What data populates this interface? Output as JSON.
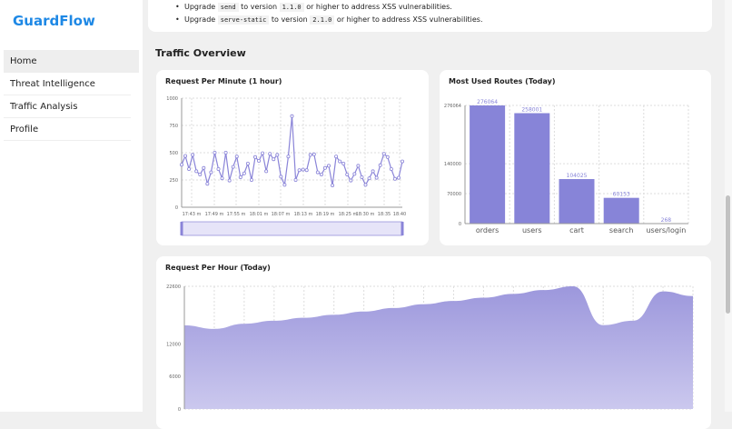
{
  "app": {
    "name": "GuardFlow"
  },
  "sidebar": {
    "items": [
      {
        "label": "Home",
        "active": true
      },
      {
        "label": "Threat Intelligence"
      },
      {
        "label": "Traffic Analysis"
      },
      {
        "label": "Profile"
      }
    ]
  },
  "recommendations": [
    {
      "pre": "Upgrade",
      "pkg": "send",
      "mid": "to version",
      "ver": "1.1.0",
      "post": "or higher to address XSS vulnerabilities."
    },
    {
      "pre": "Upgrade",
      "pkg": "serve-static",
      "mid": "to version",
      "ver": "2.1.0",
      "post": "or higher to address XSS vulnerabilities."
    }
  ],
  "section_title": "Traffic Overview",
  "colors": {
    "accent": "#8a84d8",
    "brand": "#1e88e5"
  },
  "chart_data": [
    {
      "type": "line",
      "title": "Request Per Minute (1 hour)",
      "ylim": [
        0,
        1000
      ],
      "yticks": [
        0,
        250,
        500,
        750,
        1000
      ],
      "xtick_labels": [
        "17:43 m",
        "17:49 m",
        "17:55 m",
        "18:01 m",
        "18:07 m",
        "18:13 m",
        "18:19 m",
        "18:25 m",
        "18:30 m",
        "18:35",
        "18:40"
      ],
      "values": [
        390,
        470,
        350,
        480,
        330,
        300,
        360,
        215,
        320,
        500,
        350,
        265,
        500,
        245,
        370,
        465,
        275,
        310,
        400,
        250,
        460,
        425,
        495,
        330,
        490,
        440,
        480,
        280,
        205,
        465,
        835,
        250,
        340,
        345,
        340,
        480,
        485,
        320,
        300,
        360,
        380,
        200,
        465,
        420,
        400,
        300,
        245,
        305,
        380,
        275,
        205,
        265,
        330,
        270,
        385,
        490,
        460,
        350,
        260,
        270,
        420
      ],
      "grid": true,
      "zoom_slider": {
        "start": 0,
        "end": 100
      }
    },
    {
      "type": "bar",
      "title": "Most Used Routes (Today)",
      "categories": [
        "orders",
        "users",
        "cart",
        "search",
        "users/login"
      ],
      "values": [
        276064,
        258001,
        104025,
        60153,
        268
      ],
      "yticks": [
        0,
        70000,
        140000,
        276064
      ],
      "ylim": [
        0,
        276064
      ],
      "grid": true
    },
    {
      "type": "area",
      "title": "Request Per Hour (Today)",
      "ylim": [
        0,
        22600
      ],
      "yticks": [
        0,
        6000,
        12000,
        22600
      ],
      "values": [
        15400,
        14750,
        15700,
        16250,
        16800,
        17350,
        17950,
        18600,
        19300,
        19900,
        20500,
        21200,
        21900,
        22600,
        15450,
        16250,
        21650,
        20800
      ],
      "grid": true
    }
  ]
}
